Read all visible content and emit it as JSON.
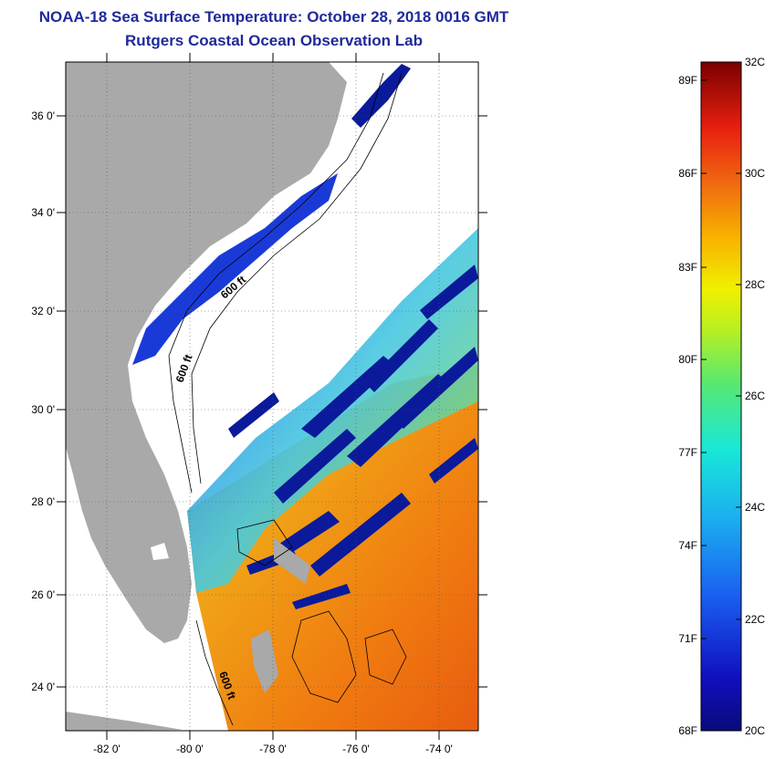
{
  "header": {
    "title": "NOAA-18 Sea Surface Temperature:  October 28, 2018 0016 GMT",
    "subtitle": "Rutgers Coastal Ocean Observation Lab"
  },
  "map": {
    "lat_labels": [
      "36 0'",
      "34 0'",
      "32 0'",
      "30 0'",
      "28 0'",
      "26 0'",
      "24 0'"
    ],
    "lon_labels": [
      "-82 0'",
      "-80 0'",
      "-78 0'",
      "-76 0'",
      "-74 0'"
    ],
    "contour_labels": [
      "600 ft",
      "600 ft",
      "600 ft"
    ],
    "colors": {
      "land": "#a9a9a9",
      "cloud_mask": "#ffffff",
      "cold": "#0a1a9a",
      "warm": "#f07a10"
    }
  },
  "colorbar": {
    "fahrenheit": [
      "89F",
      "86F",
      "83F",
      "80F",
      "77F",
      "74F",
      "71F",
      "68F"
    ],
    "celsius": [
      "32C",
      "30C",
      "28C",
      "26C",
      "24C",
      "22C",
      "20C"
    ],
    "range_c": [
      20,
      32
    ],
    "range_f": [
      68,
      89.6
    ]
  }
}
